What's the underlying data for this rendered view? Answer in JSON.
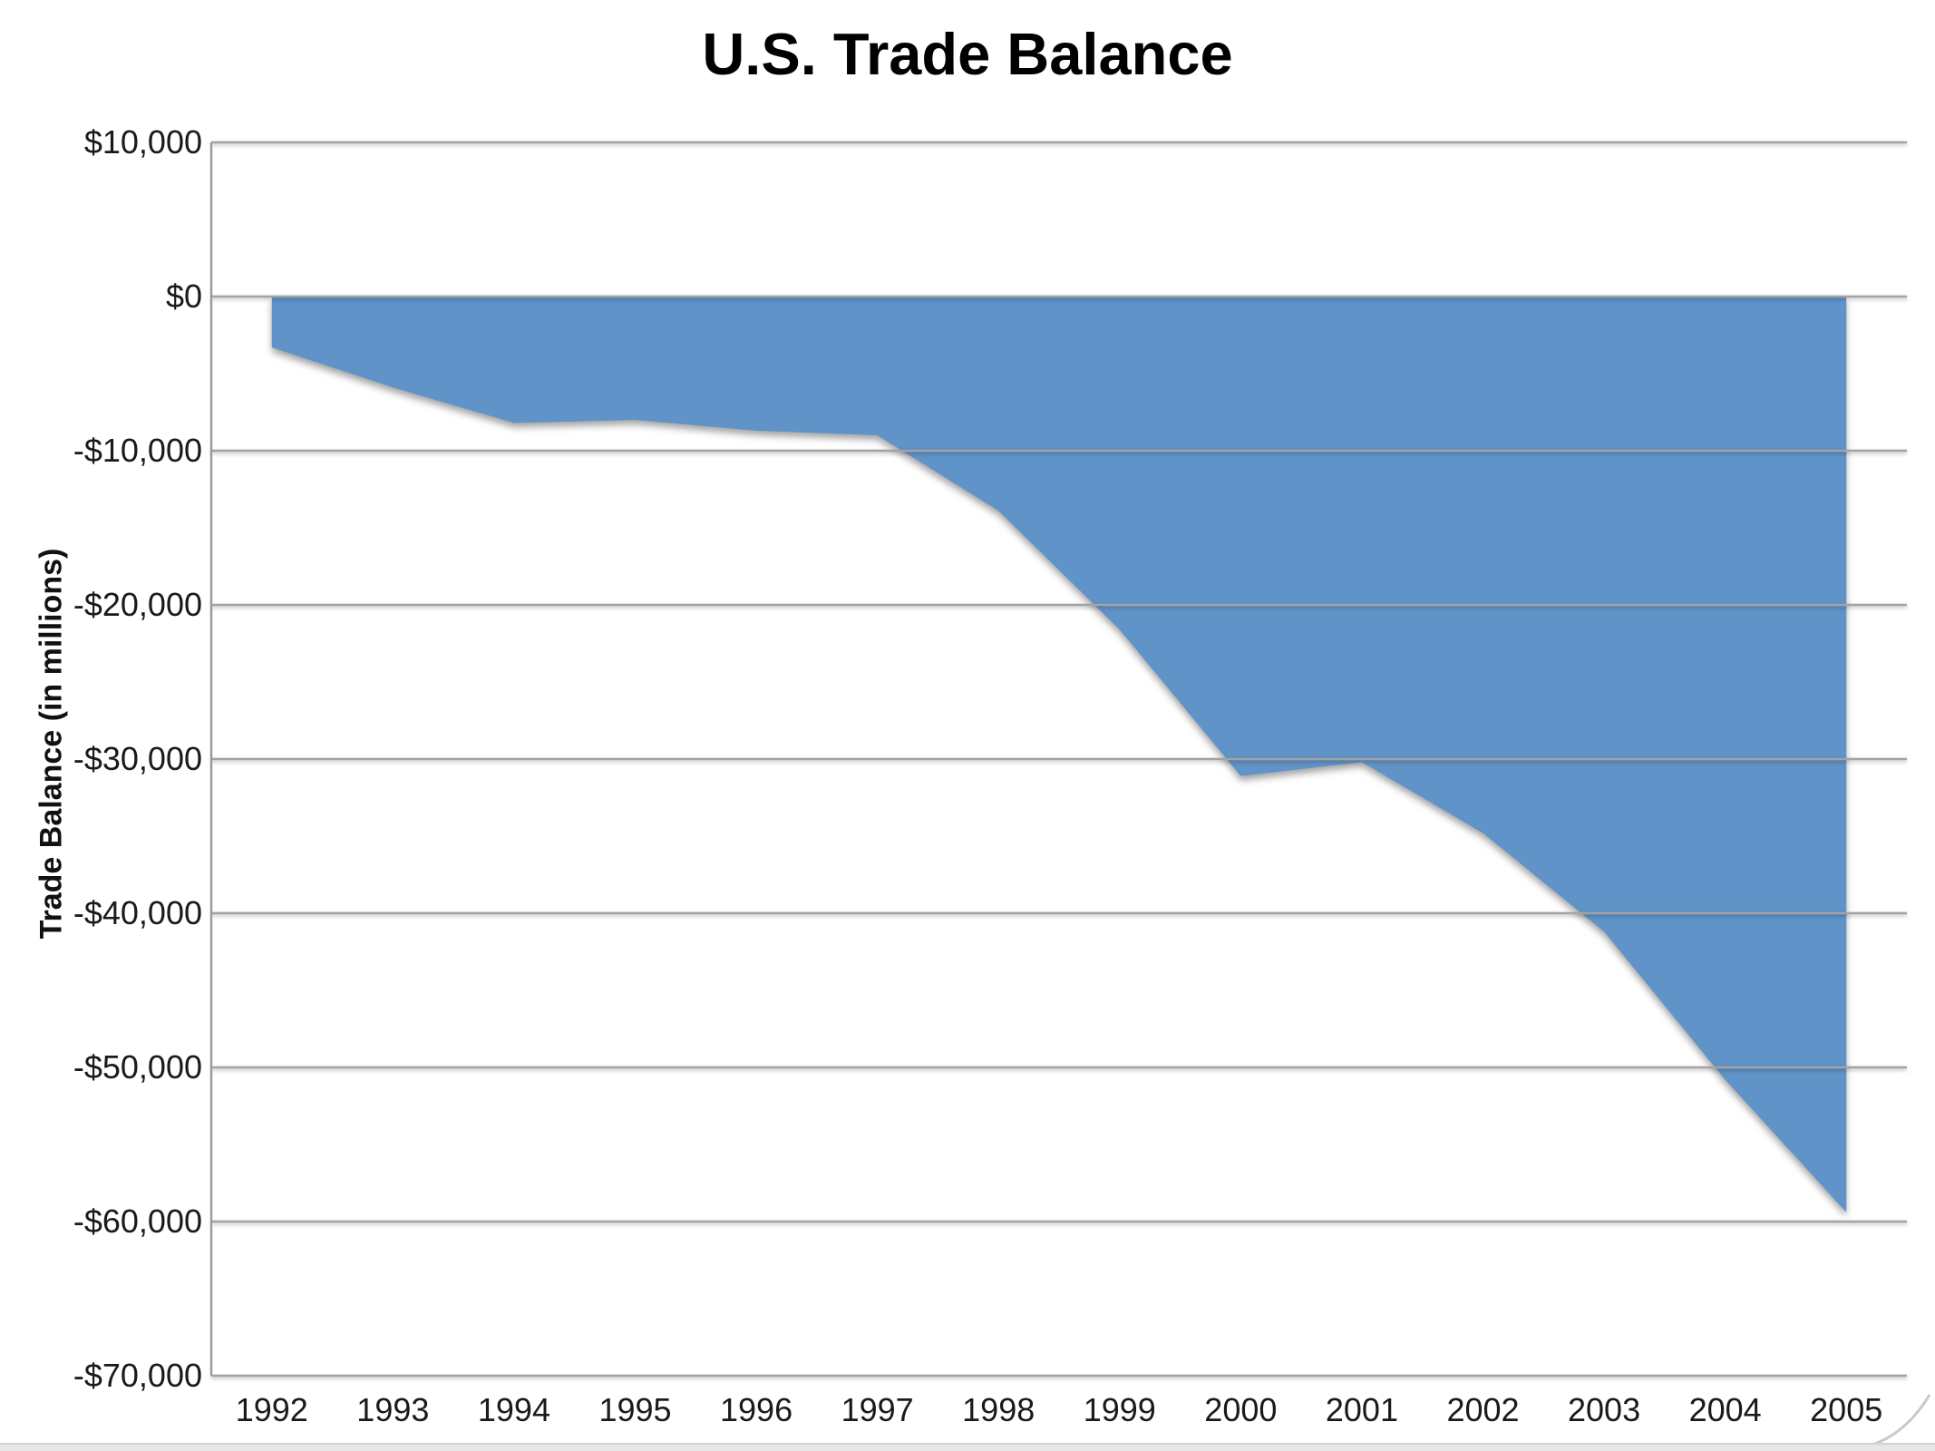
{
  "title": "U.S. Trade Balance",
  "chart_data": {
    "type": "area",
    "title": "U.S. Trade Balance",
    "xlabel": "",
    "ylabel": "Trade Balance (in millions)",
    "categories": [
      "1992",
      "1993",
      "1994",
      "1995",
      "1996",
      "1997",
      "1998",
      "1999",
      "2000",
      "2001",
      "2002",
      "2003",
      "2004",
      "2005"
    ],
    "series": [
      {
        "name": "Trade Balance",
        "values": [
          -3300,
          -5900,
          -8200,
          -8000,
          -8700,
          -9000,
          -13900,
          -21600,
          -31100,
          -30200,
          -34800,
          -41200,
          -50800,
          -59400
        ]
      }
    ],
    "ylim": [
      -70000,
      10000
    ],
    "yticks": [
      {
        "value": 10000,
        "label": "$10,000"
      },
      {
        "value": 0,
        "label": "$0"
      },
      {
        "value": -10000,
        "label": "-$10,000"
      },
      {
        "value": -20000,
        "label": "-$20,000"
      },
      {
        "value": -30000,
        "label": "-$30,000"
      },
      {
        "value": -40000,
        "label": "-$40,000"
      },
      {
        "value": -50000,
        "label": "-$50,000"
      },
      {
        "value": -60000,
        "label": "-$60,000"
      },
      {
        "value": -70000,
        "label": "-$70,000"
      }
    ],
    "grid": true,
    "legend": "none",
    "colors": {
      "fill": "#6093C8",
      "gridline": "#a3a3a3",
      "axis": "#9b9b9b",
      "text": "#1a1a1a",
      "background": "#ffffff"
    }
  }
}
